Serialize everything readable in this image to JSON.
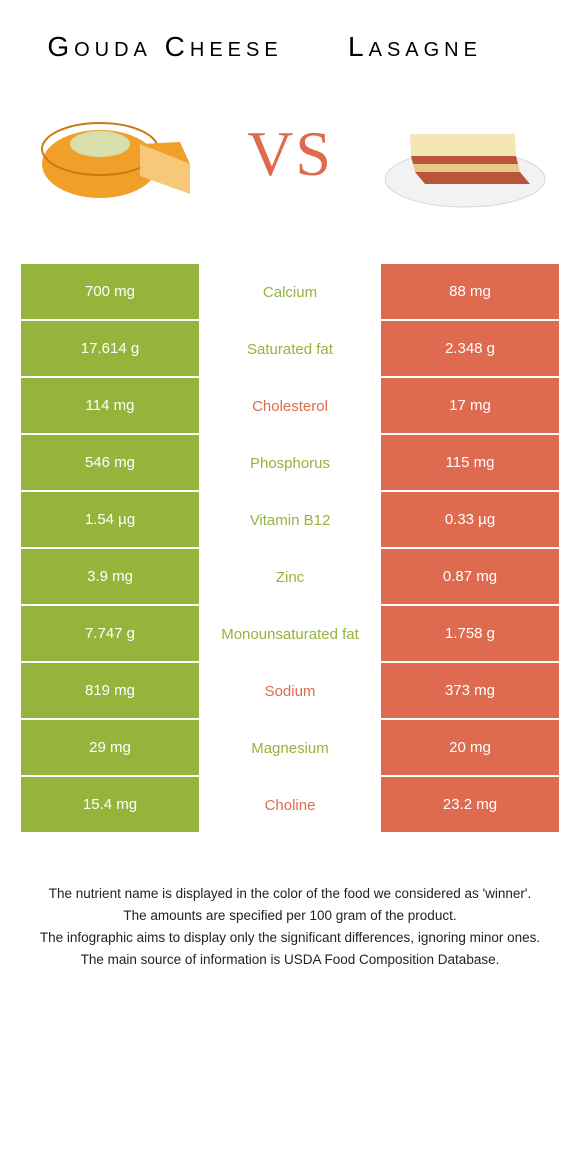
{
  "food_left": {
    "title": "Gouda Cheese",
    "color": "#94b43c",
    "illustration": {
      "wheel_fill": "#f0a028",
      "wheel_stroke": "#c97a12",
      "slice_fill": "#f6c878",
      "label_fill": "#d8dfad"
    }
  },
  "food_right": {
    "title": "Lasagne",
    "color": "#de6a4f",
    "illustration": {
      "plate_fill": "#f2f2f2",
      "plate_stroke": "#d8d8d8",
      "top_fill": "#f5e7b5",
      "sauce_fill": "#b9563a",
      "pasta_fill": "#e8c98a"
    }
  },
  "vs_label": "VS",
  "vs_color": "#de6a4f",
  "background_color": "#ffffff",
  "text_color_light": "#ffffff",
  "rows": [
    {
      "left": "700 mg",
      "label": "Calcium",
      "right": "88 mg",
      "winner": "left"
    },
    {
      "left": "17.614 g",
      "label": "Saturated fat",
      "right": "2.348 g",
      "winner": "left"
    },
    {
      "left": "114 mg",
      "label": "Cholesterol",
      "right": "17 mg",
      "winner": "right"
    },
    {
      "left": "546 mg",
      "label": "Phosphorus",
      "right": "115 mg",
      "winner": "left"
    },
    {
      "left": "1.54 µg",
      "label": "Vitamin B12",
      "right": "0.33 µg",
      "winner": "left"
    },
    {
      "left": "3.9 mg",
      "label": "Zinc",
      "right": "0.87 mg",
      "winner": "left"
    },
    {
      "left": "7.747 g",
      "label": "Monounsaturated fat",
      "right": "1.758 g",
      "winner": "left"
    },
    {
      "left": "819 mg",
      "label": "Sodium",
      "right": "373 mg",
      "winner": "right"
    },
    {
      "left": "29 mg",
      "label": "Magnesium",
      "right": "20 mg",
      "winner": "left"
    },
    {
      "left": "15.4 mg",
      "label": "Choline",
      "right": "23.2 mg",
      "winner": "right"
    }
  ],
  "footnotes": [
    "The nutrient name is displayed in the color of the food we considered as 'winner'.",
    "The amounts are specified per 100 gram of the product.",
    "The infographic aims to display only the significant differences, ignoring minor ones.",
    "The main source of information is USDA Food Composition Database."
  ]
}
